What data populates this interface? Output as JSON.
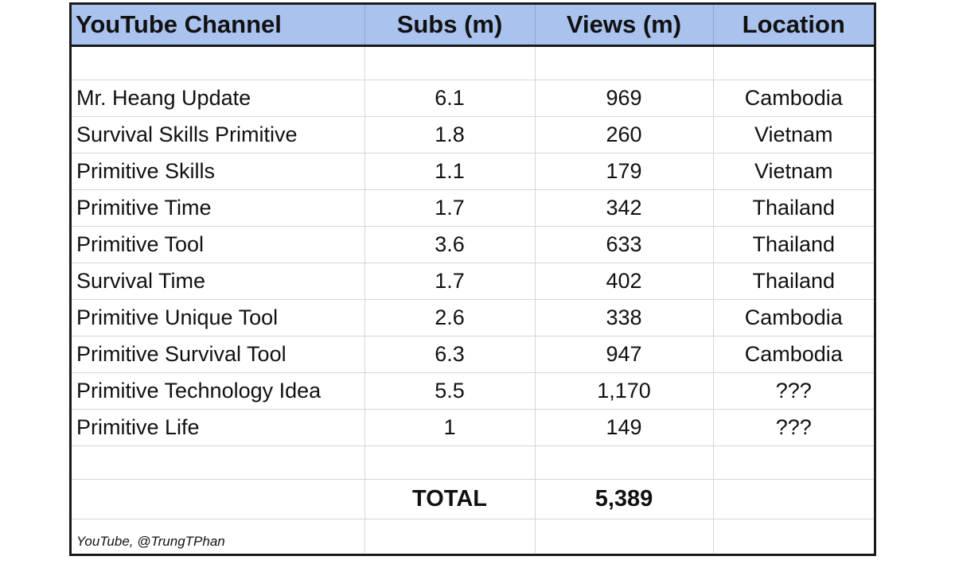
{
  "table": {
    "headers": [
      "YouTube Channel",
      "Subs (m)",
      "Views (m)",
      "Location"
    ],
    "rows": [
      {
        "channel": "Mr. Heang Update",
        "subs": "6.1",
        "views": "969",
        "location": "Cambodia"
      },
      {
        "channel": "Survival Skills Primitive",
        "subs": "1.8",
        "views": "260",
        "location": "Vietnam"
      },
      {
        "channel": "Primitive Skills",
        "subs": "1.1",
        "views": "179",
        "location": "Vietnam"
      },
      {
        "channel": "Primitive Time",
        "subs": "1.7",
        "views": "342",
        "location": "Thailand"
      },
      {
        "channel": "Primitive Tool",
        "subs": "3.6",
        "views": "633",
        "location": "Thailand"
      },
      {
        "channel": "Survival Time",
        "subs": "1.7",
        "views": "402",
        "location": "Thailand"
      },
      {
        "channel": "Primitive Unique Tool",
        "subs": "2.6",
        "views": "338",
        "location": "Cambodia"
      },
      {
        "channel": "Primitive Survival Tool",
        "subs": "6.3",
        "views": "947",
        "location": "Cambodia"
      },
      {
        "channel": "Primitive Technology Idea",
        "subs": "5.5",
        "views": "1,170",
        "location": "???"
      },
      {
        "channel": "Primitive Life",
        "subs": "1",
        "views": "149",
        "location": "???"
      }
    ],
    "total": {
      "label": "TOTAL",
      "views": "5,389"
    },
    "source": "YouTube, @TrungTPhan"
  },
  "colors": {
    "header_fill": "#a9c2ee",
    "border": "#1a1a1a",
    "grid": "#d6d6d6"
  }
}
